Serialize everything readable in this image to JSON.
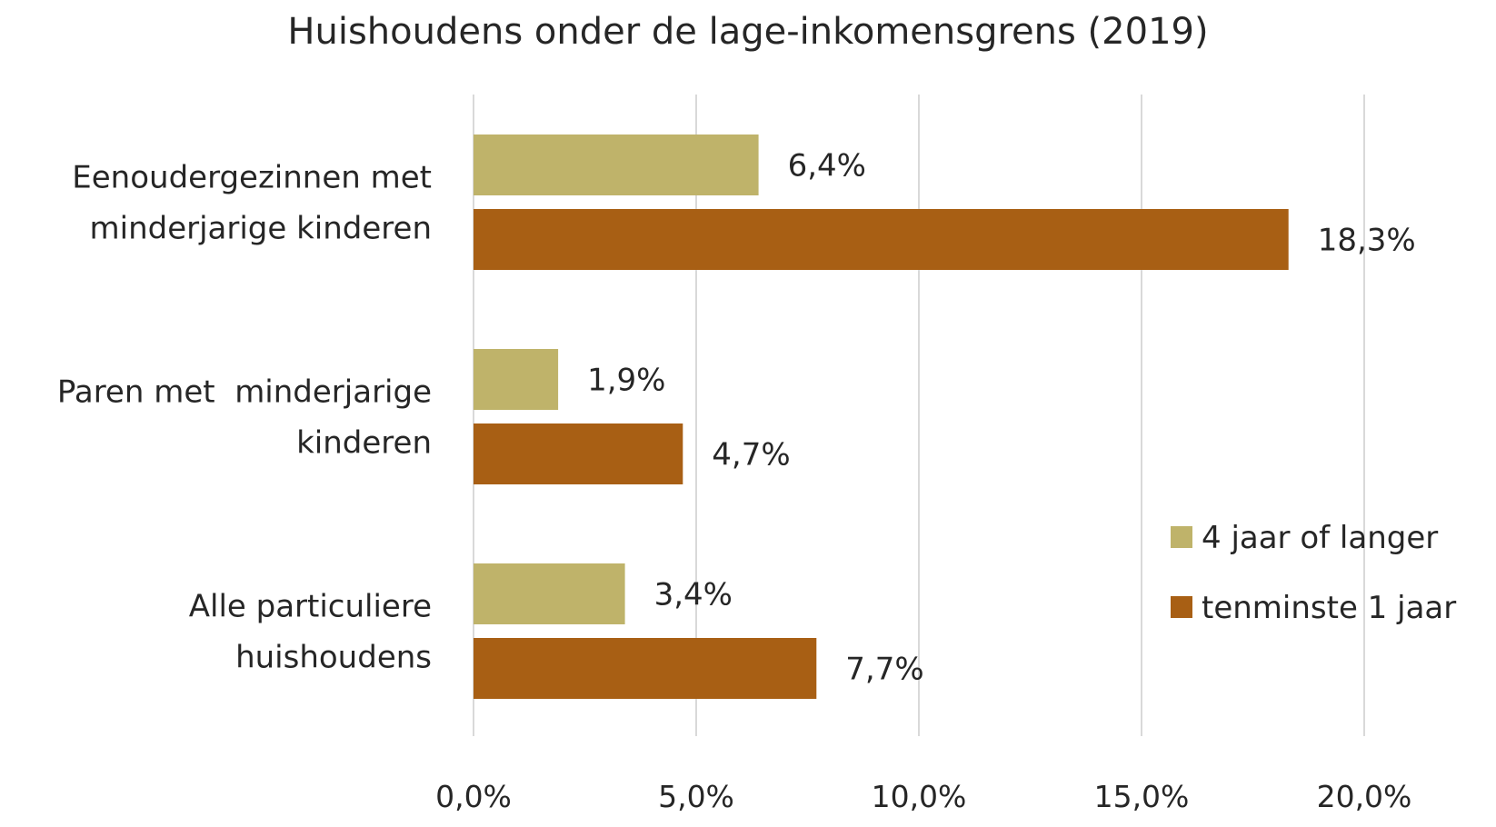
{
  "chart_data": {
    "type": "bar",
    "orientation": "horizontal",
    "title": "Huishoudens onder de lage-inkomensgrens (2019)",
    "categories": [
      [
        "Eenoudergezinnen met",
        "minderjarige kinderen"
      ],
      [
        "Paren met  minderjarige",
        "kinderen"
      ],
      [
        "Alle particuliere",
        "huishoudens"
      ]
    ],
    "series": [
      {
        "name": "4 jaar of langer",
        "color": "#bfb36a",
        "values": [
          6.4,
          1.9,
          3.4
        ],
        "labels": [
          "6,4%",
          "1,9%",
          "3,4%"
        ]
      },
      {
        "name": "tenminste 1 jaar",
        "color": "#a85f14",
        "values": [
          18.3,
          4.7,
          7.7
        ],
        "labels": [
          "18,3%",
          "4,7%",
          "7,7%"
        ]
      }
    ],
    "xlim": [
      0,
      20
    ],
    "xticks": [
      0,
      5,
      10,
      15,
      20
    ],
    "xtick_labels": [
      "0,0%",
      "5,0%",
      "10,0%",
      "15,0%",
      "20,0%"
    ],
    "grid": "vertical",
    "legend_position": "right"
  }
}
